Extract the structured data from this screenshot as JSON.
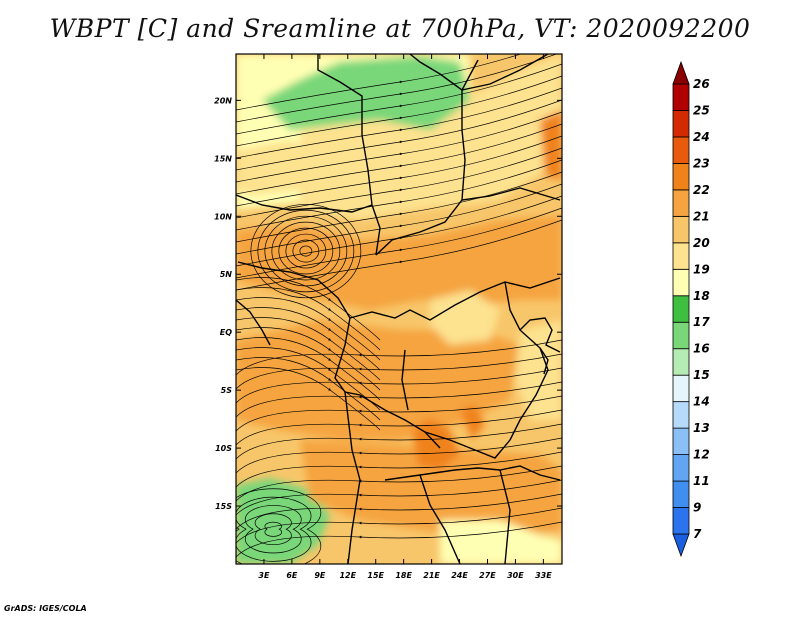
{
  "title": "WBPT [C] and Sreamline at 700hPa, VT: 2020092200",
  "credit": "GrADS: IGES/COLA",
  "map": {
    "lon_range": [
      0,
      35
    ],
    "lat_range": [
      -20,
      24
    ],
    "lon_ticks": [
      "3E",
      "6E",
      "9E",
      "12E",
      "15E",
      "18E",
      "21E",
      "24E",
      "27E",
      "30E",
      "33E"
    ],
    "lon_tick_values": [
      3,
      6,
      9,
      12,
      15,
      18,
      21,
      24,
      27,
      30,
      33
    ],
    "lat_ticks": [
      "20N",
      "15N",
      "10N",
      "5N",
      "EQ",
      "5S",
      "10S",
      "15S"
    ],
    "lat_tick_values": [
      20,
      15,
      10,
      5,
      0,
      -5,
      -10,
      -15
    ]
  },
  "colorbar": {
    "labels": [
      "7",
      "9",
      "11",
      "12",
      "13",
      "14",
      "15",
      "16",
      "17",
      "18",
      "19",
      "20",
      "21",
      "22",
      "23",
      "24",
      "25",
      "26"
    ],
    "colors": [
      "#1a5fe0",
      "#2b74ee",
      "#3f8ef0",
      "#62a6f3",
      "#8ac0f6",
      "#b6daf9",
      "#e6f5fb",
      "#b4ecb4",
      "#79d779",
      "#3fbf3f",
      "#ffffb3",
      "#fde28f",
      "#f8c66a",
      "#f5a440",
      "#f0821a",
      "#e85a0c",
      "#d42a04",
      "#b00000",
      "#8a0000"
    ]
  },
  "field_colors": {
    "orange": "#f5a440",
    "light_orange": "#f8c66a",
    "pale_yellow": "#fde28f",
    "cream": "#ffffb3",
    "green": "#79d779",
    "deep_orange": "#f0821a"
  }
}
